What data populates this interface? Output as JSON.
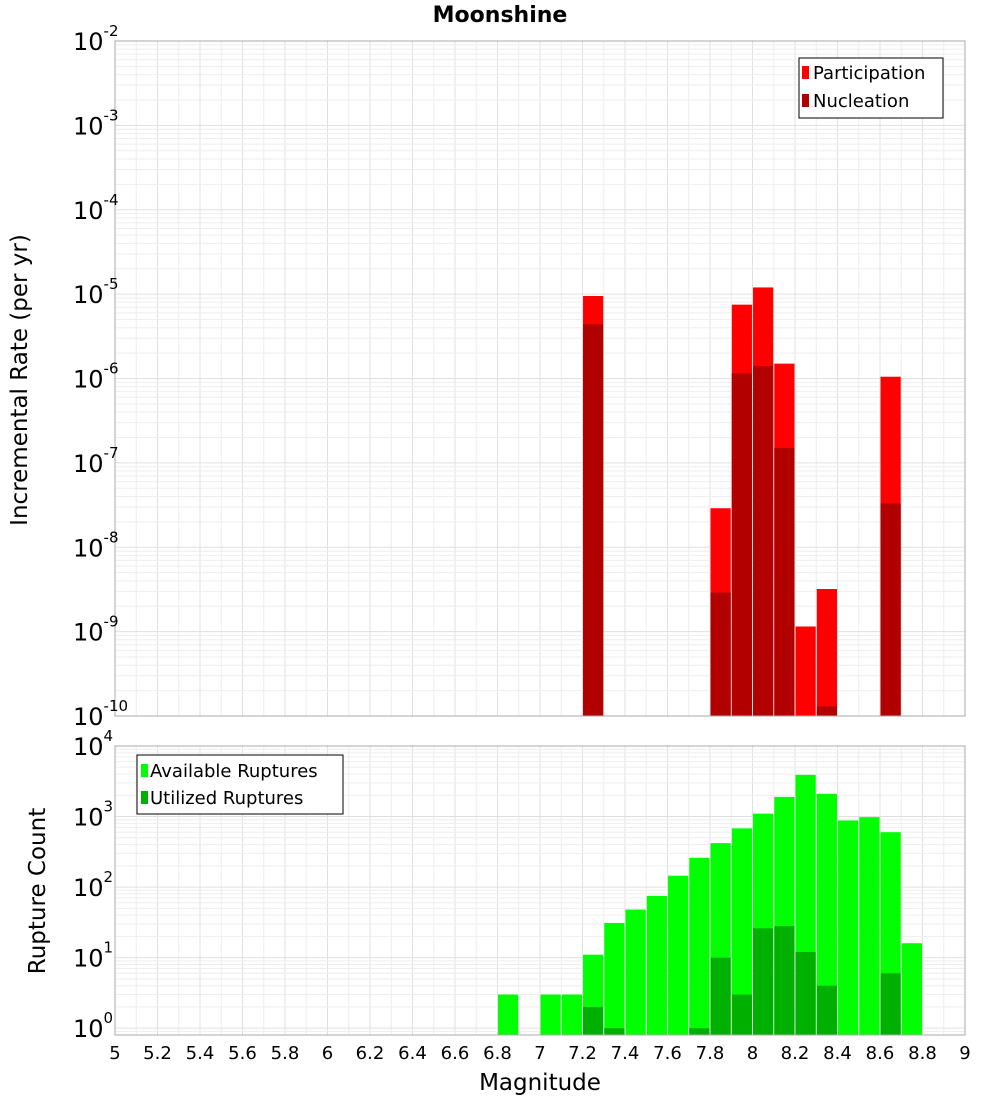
{
  "title": "Moonshine",
  "x_axis": {
    "label": "Magnitude",
    "range": [
      5,
      9
    ],
    "ticks": [
      "5",
      "5.2",
      "5.4",
      "5.6",
      "5.8",
      "6",
      "6.2",
      "6.4",
      "6.6",
      "6.8",
      "7",
      "7.2",
      "7.4",
      "7.6",
      "7.8",
      "8",
      "8.2",
      "8.4",
      "8.6",
      "8.8",
      "9"
    ]
  },
  "chart_data": [
    {
      "type": "bar",
      "name": "rates",
      "ylabel": "Incremental Rate (per yr)",
      "yscale": "log",
      "ylim": [
        1e-10,
        0.01
      ],
      "ytick_exponents": [
        "-10",
        "-9",
        "-8",
        "-7",
        "-6",
        "-5",
        "-4",
        "-3",
        "-2"
      ],
      "bar_width": 0.095,
      "legend_position": "top-right",
      "series": [
        {
          "name": "Participation",
          "color": "#ff0000",
          "points": [
            {
              "x": 7.25,
              "y": 9.5e-06
            },
            {
              "x": 7.85,
              "y": 2.9e-08
            },
            {
              "x": 7.95,
              "y": 7.5e-06
            },
            {
              "x": 8.05,
              "y": 1.2e-05
            },
            {
              "x": 8.15,
              "y": 1.5e-06
            },
            {
              "x": 8.25,
              "y": 1.15e-09
            },
            {
              "x": 8.35,
              "y": 3.2e-09
            },
            {
              "x": 8.65,
              "y": 1.05e-06
            }
          ]
        },
        {
          "name": "Nucleation",
          "color": "#b20000",
          "points": [
            {
              "x": 7.25,
              "y": 4.4e-06
            },
            {
              "x": 7.85,
              "y": 2.9e-09
            },
            {
              "x": 7.95,
              "y": 1.15e-06
            },
            {
              "x": 8.05,
              "y": 1.4e-06
            },
            {
              "x": 8.15,
              "y": 1.5e-07
            },
            {
              "x": 8.35,
              "y": 1.3e-10
            },
            {
              "x": 8.65,
              "y": 3.3e-08
            }
          ]
        }
      ]
    },
    {
      "type": "bar",
      "name": "counts",
      "ylabel": "Rupture Count",
      "yscale": "log",
      "ylim": [
        0.8,
        10000
      ],
      "ytick_exponents": [
        "0",
        "1",
        "2",
        "3",
        "4"
      ],
      "bar_width": 0.095,
      "legend_position": "top-left",
      "series": [
        {
          "name": "Available Ruptures",
          "color": "#00ff00",
          "points": [
            {
              "x": 6.85,
              "y": 3
            },
            {
              "x": 7.05,
              "y": 3
            },
            {
              "x": 7.15,
              "y": 3
            },
            {
              "x": 7.25,
              "y": 11
            },
            {
              "x": 7.35,
              "y": 31
            },
            {
              "x": 7.45,
              "y": 48
            },
            {
              "x": 7.55,
              "y": 75
            },
            {
              "x": 7.65,
              "y": 145
            },
            {
              "x": 7.75,
              "y": 260
            },
            {
              "x": 7.85,
              "y": 420
            },
            {
              "x": 7.95,
              "y": 680
            },
            {
              "x": 8.05,
              "y": 1100
            },
            {
              "x": 8.15,
              "y": 1900
            },
            {
              "x": 8.25,
              "y": 3900
            },
            {
              "x": 8.35,
              "y": 2100
            },
            {
              "x": 8.45,
              "y": 880
            },
            {
              "x": 8.55,
              "y": 980
            },
            {
              "x": 8.65,
              "y": 600
            },
            {
              "x": 8.75,
              "y": 16
            }
          ]
        },
        {
          "name": "Utilized Ruptures",
          "color": "#00b000",
          "points": [
            {
              "x": 7.25,
              "y": 2
            },
            {
              "x": 7.35,
              "y": 1
            },
            {
              "x": 7.75,
              "y": 1
            },
            {
              "x": 7.85,
              "y": 10
            },
            {
              "x": 7.95,
              "y": 3
            },
            {
              "x": 8.05,
              "y": 26
            },
            {
              "x": 8.15,
              "y": 28
            },
            {
              "x": 8.25,
              "y": 12
            },
            {
              "x": 8.35,
              "y": 4
            },
            {
              "x": 8.65,
              "y": 6
            }
          ]
        }
      ]
    }
  ]
}
